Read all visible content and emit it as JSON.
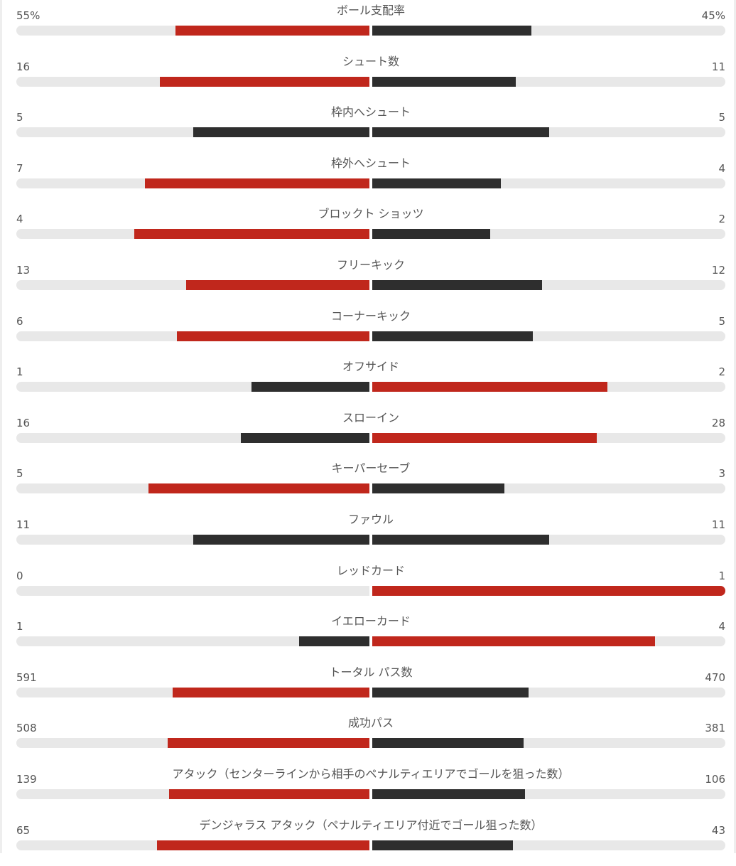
{
  "colors": {
    "leading": "#c0271c",
    "trailing": "#2e2e2e",
    "track": "#e8e8e8"
  },
  "chart_data": {
    "type": "bar",
    "orientation": "diverging-horizontal",
    "series": [
      {
        "values": [
          55,
          16,
          5,
          7,
          4,
          13,
          6,
          1,
          16,
          5,
          11,
          0,
          1,
          591,
          508,
          139,
          65
        ]
      },
      {
        "values": [
          45,
          11,
          5,
          4,
          2,
          12,
          5,
          2,
          28,
          3,
          11,
          1,
          4,
          470,
          381,
          106,
          43
        ]
      }
    ],
    "categories": [
      "ボール支配率",
      "シュート数",
      "枠内へシュート",
      "枠外へシュート",
      "ブロックト ショッツ",
      "フリーキック",
      "コーナーキック",
      "オフサイド",
      "スローイン",
      "キーパーセーブ",
      "ファウル",
      "レッドカード",
      "イエローカード",
      "トータル パス数",
      "成功パス",
      "アタック（センターラインから相手のペナルティエリアでゴールを狙った数）",
      "デンジャラス アタック（ペナルティエリア付近でゴール狙った数）"
    ],
    "home_labels": [
      "55%",
      "16",
      "5",
      "7",
      "4",
      "13",
      "6",
      "1",
      "16",
      "5",
      "11",
      "0",
      "1",
      "591",
      "508",
      "139",
      "65"
    ],
    "away_labels": [
      "45%",
      "11",
      "5",
      "4",
      "2",
      "12",
      "5",
      "2",
      "28",
      "3",
      "11",
      "1",
      "4",
      "470",
      "381",
      "106",
      "43"
    ]
  }
}
